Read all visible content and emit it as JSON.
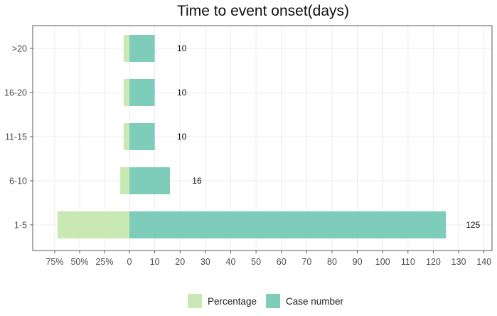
{
  "chart_data": {
    "type": "bar",
    "title": "Time to event onset(days)",
    "categories": [
      ">20",
      "16-20",
      "11-15",
      "6-10",
      "1-5"
    ],
    "series": [
      {
        "name": "Percentage",
        "values": [
          5.8,
          5.8,
          5.8,
          9.2,
          72.3
        ]
      },
      {
        "name": "Case number",
        "values": [
          10,
          10,
          10,
          16,
          125
        ]
      }
    ],
    "data_labels": [
      "10",
      "10",
      "10",
      "16",
      "125"
    ],
    "x_ticks": [
      "75%",
      "50%",
      "25%",
      "0",
      "10",
      "20",
      "30",
      "40",
      "50",
      "60",
      "70",
      "80",
      "90",
      "100",
      "110",
      "120",
      "130",
      "140"
    ],
    "xlim_percentage": [
      0,
      75
    ],
    "xlim_case_number": [
      0,
      140
    ],
    "legend_placement": "bottom",
    "grid": true,
    "colors": {
      "Percentage": "#c8e8b4",
      "Case number": "#7ecdbb"
    }
  }
}
